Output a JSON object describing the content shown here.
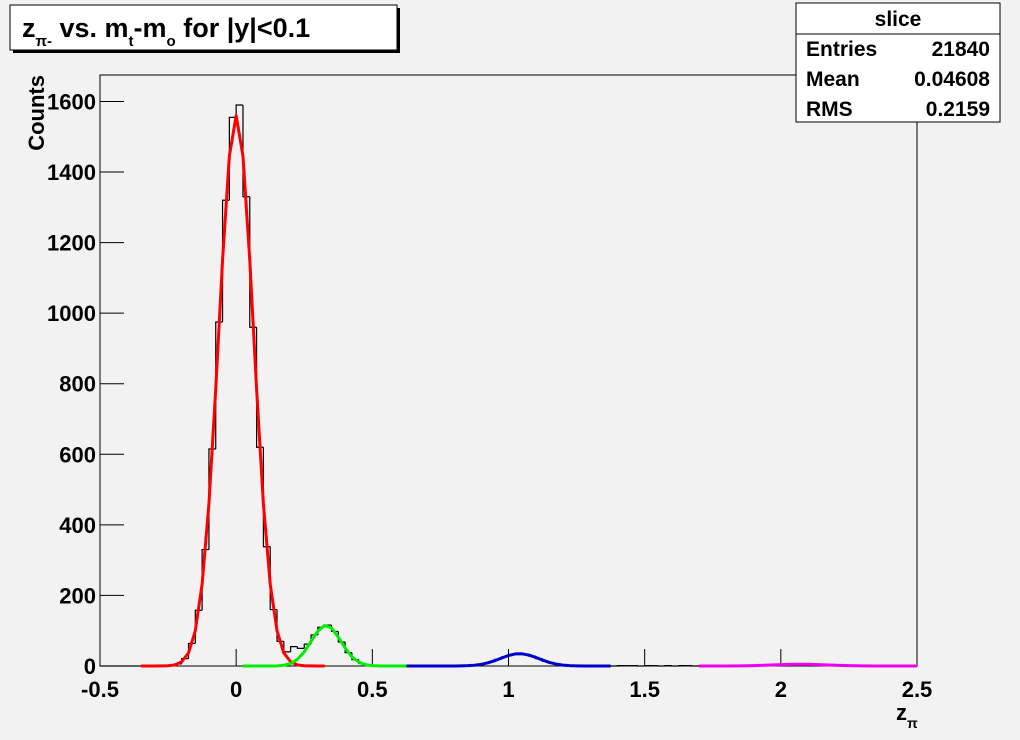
{
  "chart_data": {
    "type": "histogram",
    "title": [
      "z",
      "π-",
      " vs. m",
      "t",
      "-m",
      "o",
      " for |y|<0.1"
    ],
    "x_label": [
      "z",
      "π"
    ],
    "y_label": "Counts",
    "color": "#000000",
    "xlim": [
      -0.5,
      2.5
    ],
    "xticks": [
      -0.5,
      0,
      0.5,
      1,
      1.5,
      2,
      2.5
    ],
    "ylim": [
      0,
      1675
    ],
    "yticks": [
      0,
      200,
      400,
      600,
      800,
      1000,
      1200,
      1400,
      1600
    ],
    "grid": false,
    "bins": [
      -0.5,
      -0.475,
      -0.45,
      -0.425,
      -0.4,
      -0.375,
      -0.35,
      -0.325,
      -0.3,
      -0.275,
      -0.25,
      -0.225,
      -0.2,
      -0.175,
      -0.15,
      -0.125,
      -0.1,
      -0.075,
      -0.05,
      -0.025,
      0,
      0.025,
      0.05,
      0.075,
      0.1,
      0.125,
      0.15,
      0.175,
      0.2,
      0.225,
      0.25,
      0.275,
      0.3,
      0.325,
      0.35,
      0.375,
      0.4,
      0.425,
      0.45,
      0.475,
      0.5,
      0.525,
      0.55,
      0.575,
      0.6,
      0.625,
      0.65,
      0.675,
      0.7,
      0.725,
      0.75,
      0.775,
      0.8,
      0.825,
      0.85,
      0.875,
      0.9,
      0.925,
      0.95,
      0.975,
      1,
      1.025,
      1.05,
      1.075,
      1.1,
      1.125,
      1.15,
      1.175,
      1.2,
      1.225,
      1.25,
      1.275,
      1.3,
      1.325,
      1.35,
      1.375,
      1.4,
      1.425,
      1.45,
      1.475,
      1.5,
      1.525,
      1.55,
      1.575,
      1.6,
      1.625,
      1.65,
      1.675,
      1.7,
      1.725,
      1.75,
      1.775,
      1.8,
      1.825,
      1.85,
      1.875,
      1.9,
      1.925,
      1.95,
      1.975,
      2,
      2.025,
      2.05,
      2.075,
      2.1,
      2.125,
      2.15,
      2.175,
      2.2,
      2.225,
      2.25,
      2.275,
      2.3,
      2.325,
      2.35,
      2.375,
      2.4,
      2.425,
      2.45,
      2.475,
      2.5
    ],
    "values": [
      0,
      0,
      0,
      0,
      0,
      0,
      0,
      0,
      0,
      1,
      2,
      6,
      21,
      64,
      158,
      330,
      615,
      975,
      1320,
      1555,
      1590,
      1330,
      960,
      620,
      338,
      160,
      70,
      40,
      55,
      50,
      62,
      88,
      110,
      116,
      98,
      68,
      38,
      18,
      7,
      3,
      1,
      1,
      1,
      1,
      0,
      1,
      0,
      1,
      1,
      0,
      1,
      1,
      1,
      1,
      2,
      3,
      7,
      12,
      19,
      26,
      32,
      36,
      33,
      28,
      21,
      13,
      8,
      4,
      2,
      1,
      1,
      1,
      0,
      1,
      1,
      0,
      1,
      1,
      1,
      0,
      1,
      1,
      0,
      1,
      0,
      1,
      1,
      0,
      1,
      1,
      0,
      1,
      1,
      0,
      1,
      1,
      1,
      1,
      2,
      3,
      4,
      5,
      5,
      5,
      4,
      3,
      2,
      1,
      1,
      0,
      0,
      1,
      0,
      0,
      0,
      0,
      0,
      0,
      0,
      0
    ],
    "fits": [
      {
        "color": "#ff0000",
        "x": [
          -0.35,
          -0.325,
          -0.3,
          -0.275,
          -0.25,
          -0.225,
          -0.2,
          -0.175,
          -0.15,
          -0.125,
          -0.1,
          -0.075,
          -0.05,
          -0.025,
          0,
          0.025,
          0.05,
          0.075,
          0.1,
          0.125,
          0.15,
          0.175,
          0.2,
          0.225,
          0.25,
          0.275,
          0.3,
          0.325
        ],
        "values": [
          0,
          0,
          0,
          0.2,
          0.8,
          3,
          12,
          37,
          100,
          232,
          460,
          785,
          1150,
          1445,
          1560,
          1445,
          1150,
          785,
          460,
          232,
          100,
          37,
          12,
          3,
          0.8,
          0.2,
          0,
          0
        ]
      },
      {
        "color": "#00ee00",
        "x": [
          0.025,
          0.05,
          0.075,
          0.1,
          0.125,
          0.15,
          0.175,
          0.2,
          0.225,
          0.25,
          0.275,
          0.3,
          0.325,
          0.35,
          0.375,
          0.4,
          0.425,
          0.45,
          0.475,
          0.5,
          0.525,
          0.55,
          0.575,
          0.6,
          0.625
        ],
        "values": [
          0,
          0,
          0,
          0,
          0.1,
          0.5,
          2.2,
          7,
          19,
          40,
          70,
          99,
          115,
          108,
          82,
          51,
          26,
          11,
          3.5,
          1,
          0.2,
          0,
          0,
          0,
          0
        ]
      },
      {
        "color": "#0000cc",
        "x": [
          0.625,
          0.65,
          0.675,
          0.7,
          0.725,
          0.75,
          0.775,
          0.8,
          0.825,
          0.85,
          0.875,
          0.9,
          0.925,
          0.95,
          0.975,
          1,
          1.025,
          1.05,
          1.075,
          1.1,
          1.125,
          1.15,
          1.175,
          1.2,
          1.225,
          1.25,
          1.275,
          1.3,
          1.325,
          1.35,
          1.375
        ],
        "values": [
          0,
          0,
          0,
          0,
          0,
          0,
          0,
          0.1,
          0.3,
          0.9,
          2.2,
          4.7,
          9,
          15.3,
          22.7,
          29.7,
          34.2,
          34.6,
          30.9,
          24.3,
          16.8,
          10.2,
          5.4,
          2.6,
          1.1,
          0.4,
          0.1,
          0,
          0,
          0,
          0
        ]
      },
      {
        "color": "#ee00ee",
        "x": [
          1.7,
          1.75,
          1.8,
          1.85,
          1.9,
          1.95,
          2,
          2.05,
          2.1,
          2.15,
          2.2,
          2.25,
          2.3,
          2.35,
          2.4,
          2.45,
          2.5
        ],
        "values": [
          0,
          0,
          0.1,
          0.4,
          1.2,
          2.4,
          3.9,
          4.9,
          4.8,
          3.6,
          2.1,
          1,
          0.4,
          0.1,
          0,
          0,
          0
        ]
      }
    ],
    "stats": {
      "title": "slice",
      "rows": [
        [
          "Entries",
          21840
        ],
        [
          "Mean",
          0.04608
        ],
        [
          "RMS",
          0.2159
        ]
      ]
    }
  }
}
